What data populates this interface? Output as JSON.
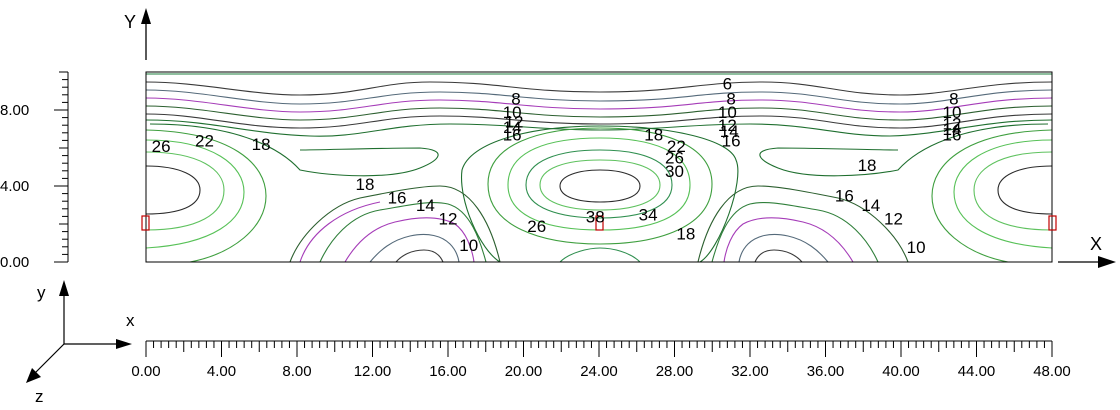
{
  "labels": {
    "axis_X": "X",
    "axis_Y": "Y",
    "triad_x": "x",
    "triad_y": "y",
    "triad_z": "z"
  },
  "x_scale": {
    "ticks": [
      "0.00",
      "4.00",
      "8.00",
      "12.00",
      "16.00",
      "20.00",
      "24.00",
      "28.00",
      "32.00",
      "36.00",
      "40.00",
      "44.00",
      "48.00"
    ]
  },
  "y_scale": {
    "ticks": [
      "0.00",
      "4.00",
      "8.00"
    ]
  },
  "contour_labels": [
    {
      "text": "6",
      "x": 30.8,
      "y": 9.4
    },
    {
      "text": "8",
      "x": 19.6,
      "y": 8.6
    },
    {
      "text": "8",
      "x": 31.0,
      "y": 8.6
    },
    {
      "text": "8",
      "x": 42.8,
      "y": 8.6
    },
    {
      "text": "10",
      "x": 19.4,
      "y": 7.9
    },
    {
      "text": "10",
      "x": 30.8,
      "y": 7.9
    },
    {
      "text": "10",
      "x": 42.7,
      "y": 7.9
    },
    {
      "text": "12",
      "x": 19.5,
      "y": 7.4
    },
    {
      "text": "12",
      "x": 30.8,
      "y": 7.2
    },
    {
      "text": "12",
      "x": 42.7,
      "y": 7.3
    },
    {
      "text": "14",
      "x": 19.4,
      "y": 7.1
    },
    {
      "text": "14",
      "x": 30.9,
      "y": 6.9
    },
    {
      "text": "14",
      "x": 42.7,
      "y": 7.0
    },
    {
      "text": "16",
      "x": 19.4,
      "y": 6.7
    },
    {
      "text": "16",
      "x": 31.0,
      "y": 6.4
    },
    {
      "text": "16",
      "x": 42.7,
      "y": 6.7
    },
    {
      "text": "18",
      "x": 26.9,
      "y": 6.7
    },
    {
      "text": "18",
      "x": 6.1,
      "y": 6.2
    },
    {
      "text": "18",
      "x": 11.6,
      "y": 4.1
    },
    {
      "text": "18",
      "x": 38.2,
      "y": 5.1
    },
    {
      "text": "18",
      "x": 28.6,
      "y": 1.5
    },
    {
      "text": "22",
      "x": 3.1,
      "y": 6.4
    },
    {
      "text": "22",
      "x": 28.1,
      "y": 6.1
    },
    {
      "text": "26",
      "x": 0.8,
      "y": 6.1
    },
    {
      "text": "26",
      "x": 28.0,
      "y": 5.5
    },
    {
      "text": "26",
      "x": 20.7,
      "y": 1.9
    },
    {
      "text": "30",
      "x": 28.0,
      "y": 4.8
    },
    {
      "text": "34",
      "x": 26.6,
      "y": 2.5
    },
    {
      "text": "38",
      "x": 23.8,
      "y": 2.4
    },
    {
      "text": "16",
      "x": 13.3,
      "y": 3.4
    },
    {
      "text": "16",
      "x": 37.0,
      "y": 3.5
    },
    {
      "text": "14",
      "x": 14.8,
      "y": 3.0
    },
    {
      "text": "14",
      "x": 38.4,
      "y": 3.0
    },
    {
      "text": "12",
      "x": 16.0,
      "y": 2.3
    },
    {
      "text": "12",
      "x": 39.6,
      "y": 2.3
    },
    {
      "text": "10",
      "x": 17.1,
      "y": 0.9
    },
    {
      "text": "10",
      "x": 40.8,
      "y": 0.8
    }
  ],
  "colors": {
    "c_6": "#1f7f3f",
    "c_8": "#3a3a3a",
    "c_10": "#556a7a",
    "c_12": "#a53cb8",
    "c_14": "#2f7f3a",
    "c_16": "#2c5f2f",
    "c_18": "#1f6f2f",
    "c_22": "#3f9f3f",
    "c_26": "#57c157",
    "c_30": "#2f8f4f",
    "c_34": "#5fc25f",
    "c_38": "#2a2a2a",
    "support": "#c00000"
  }
}
